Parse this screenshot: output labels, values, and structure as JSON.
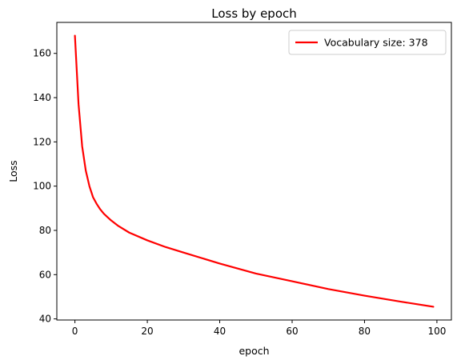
{
  "chart_data": {
    "type": "line",
    "title": "Loss by epoch",
    "xlabel": "epoch",
    "ylabel": "Loss",
    "xlim": [
      -5,
      104
    ],
    "ylim": [
      39.5,
      174
    ],
    "xticks": [
      0,
      20,
      40,
      60,
      80,
      100
    ],
    "yticks": [
      40,
      60,
      80,
      100,
      120,
      140,
      160
    ],
    "grid": false,
    "legend_position": "top-right",
    "series": [
      {
        "name": "Vocabulary size: 378",
        "color": "#ff0000",
        "x": [
          0,
          1,
          2,
          3,
          4,
          5,
          6,
          7,
          8,
          9,
          10,
          12,
          15,
          20,
          25,
          30,
          40,
          50,
          60,
          70,
          80,
          90,
          99
        ],
        "y": [
          168,
          137,
          118,
          107,
          100,
          95,
          92,
          89.5,
          87.5,
          86,
          84.5,
          82,
          79,
          75.5,
          72.5,
          70,
          65,
          60.5,
          57,
          53.5,
          50.5,
          47.8,
          45.5
        ]
      }
    ]
  }
}
